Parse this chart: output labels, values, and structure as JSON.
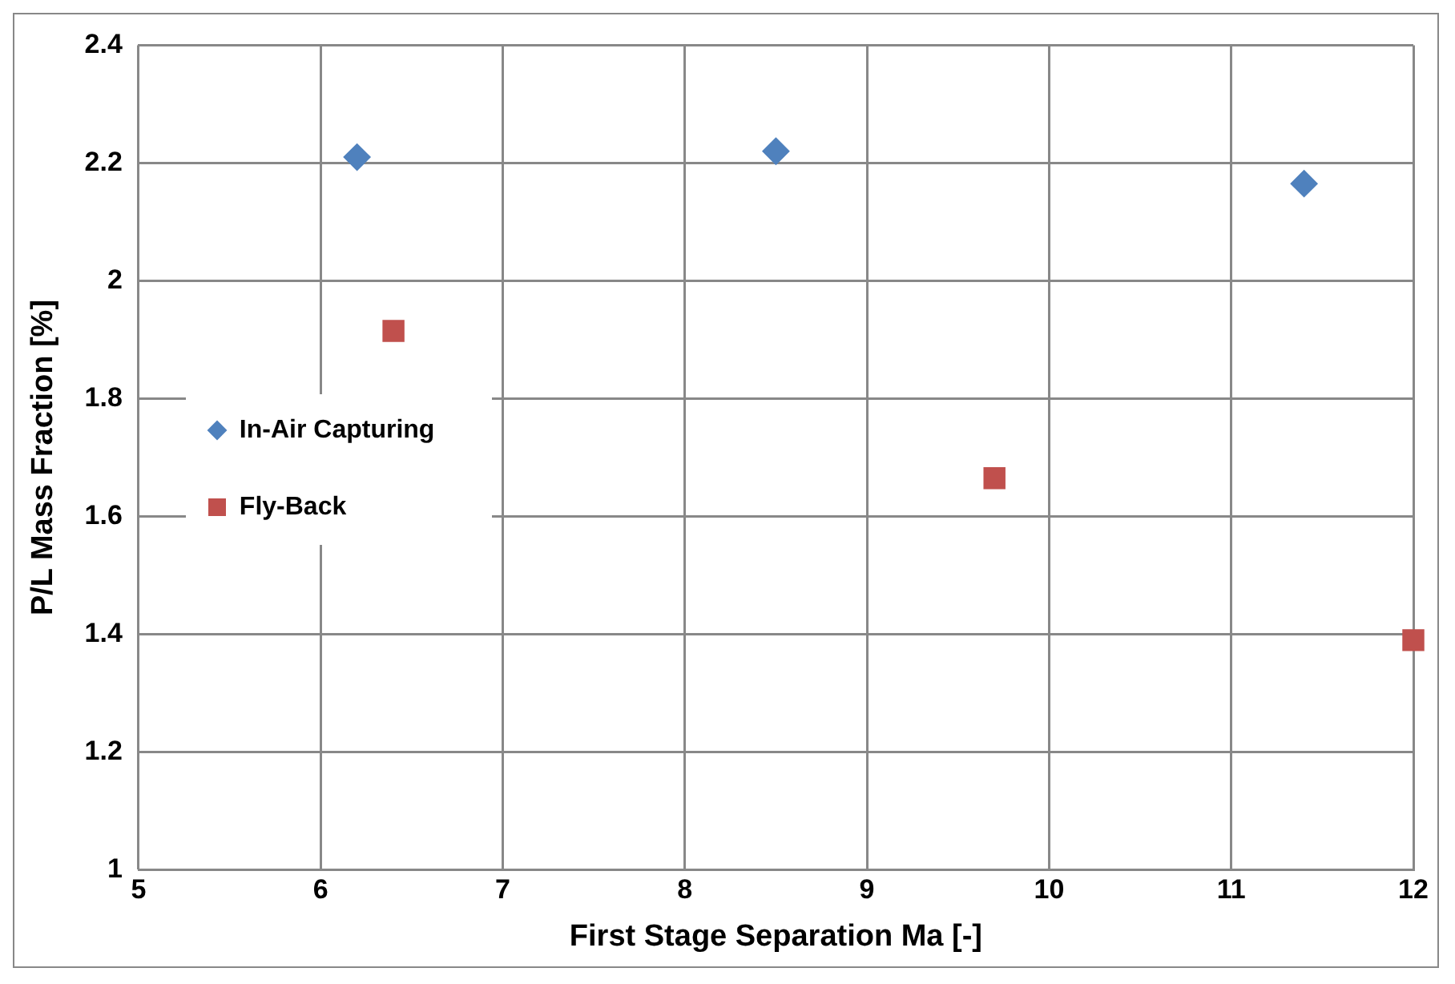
{
  "chart_data": {
    "type": "scatter",
    "xlabel": "First Stage Separation Ma [-]",
    "ylabel": "P/L Mass Fraction [%]",
    "xlim": [
      5,
      12
    ],
    "xticks": [
      5,
      6,
      7,
      8,
      9,
      10,
      11,
      12
    ],
    "ylim": [
      1,
      2.4
    ],
    "yticks": [
      1,
      1.2,
      1.4,
      1.6,
      1.8,
      2,
      2.2,
      2.4
    ],
    "grid": true,
    "legend": "left",
    "series": [
      {
        "name": "In-Air Capturing",
        "color": "#4f81bd",
        "marker": "diamond",
        "x": [
          6.2,
          8.5,
          11.4
        ],
        "values": [
          2.21,
          2.22,
          2.165
        ]
      },
      {
        "name": "Fly-Back",
        "color": "#c0504d",
        "marker": "square",
        "x": [
          6.4,
          9.7,
          12
        ],
        "values": [
          1.915,
          1.665,
          1.39
        ]
      }
    ]
  }
}
